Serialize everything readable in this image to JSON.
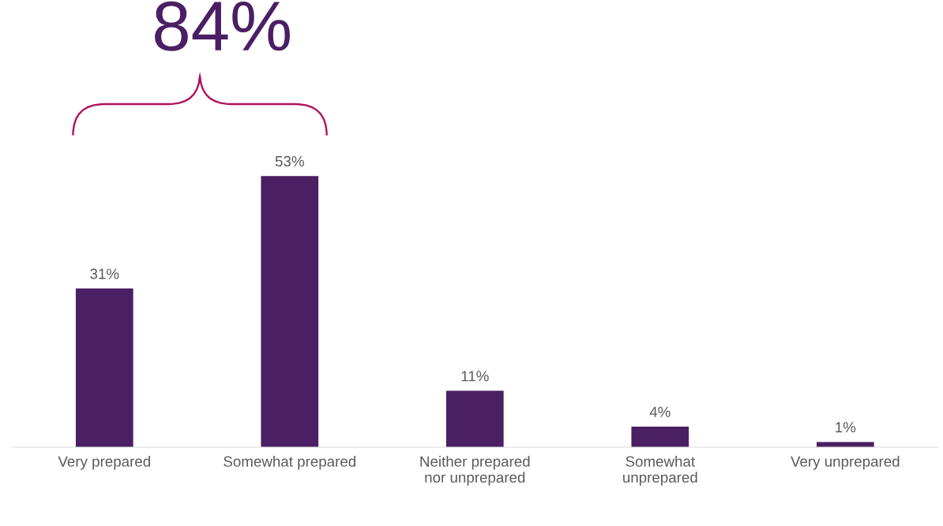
{
  "chart_data": {
    "type": "bar",
    "categories": [
      "Very prepared",
      "Somewhat prepared",
      "Neither prepared\nnor unprepared",
      "Somewhat\nunprepared",
      "Very unprepared"
    ],
    "values": [
      31,
      53,
      11,
      4,
      1
    ],
    "value_labels": [
      "31%",
      "53%",
      "11%",
      "4%",
      "1%"
    ],
    "color": "#4a1f63",
    "grid": false,
    "legend": false,
    "annotations": [
      "84%"
    ]
  }
}
